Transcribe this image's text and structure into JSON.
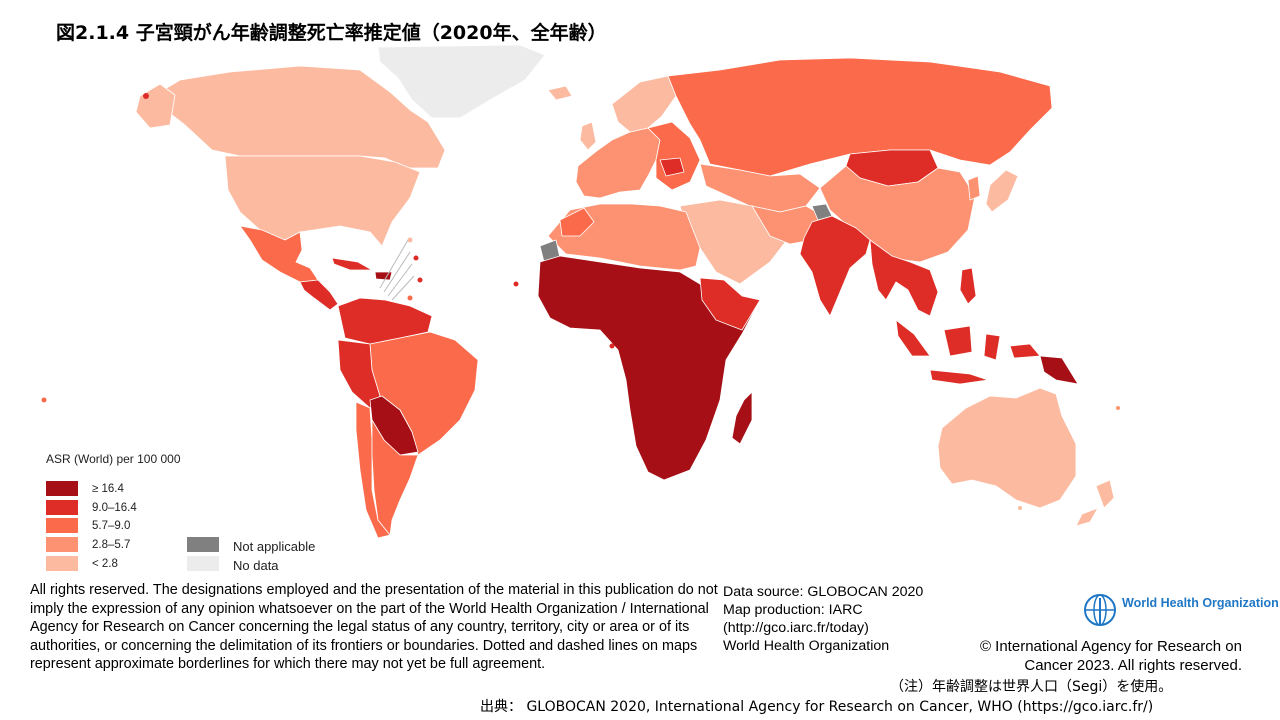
{
  "title": "図2.1.4 子宮頸がん年齢調整死亡率推定値（2020年、全年齢）",
  "legend": {
    "title": "ASR (World) per 100 000",
    "classes": [
      {
        "label": "≥ 16.4",
        "color": "#a50f15"
      },
      {
        "label": "9.0–16.4",
        "color": "#de2d26"
      },
      {
        "label": "5.7–9.0",
        "color": "#fb6a4a"
      },
      {
        "label": "2.8–5.7",
        "color": "#fc9272"
      },
      {
        "label": "< 2.8",
        "color": "#fcbba1"
      }
    ],
    "extra": [
      {
        "label": "Not applicable",
        "color": "#808080"
      },
      {
        "label": "No data",
        "color": "#ececec"
      }
    ]
  },
  "disclaimer": "All rights reserved. The designations employed and the presentation of the material in this publication do not imply the expression of any opinion whatsoever on the part of the World Health Organization / International  Agency for Research on Cancer concerning the legal status of any country, territory, city or area or of its authorities, or concerning the delimitation of its frontiers or boundaries. Dotted and dashed lines on maps represent approximate borderlines for which there may not yet be full agreement.",
  "source": {
    "line1": "Data source: GLOBOCAN 2020",
    "line2": "Map production: IARC",
    "line3": "(http://gco.iarc.fr/today)",
    "line4": "World Health  Organization"
  },
  "who_logo_text": "World Health Organization",
  "copyright": {
    "line1": "© International  Agency for Research on",
    "line2": "Cancer 2023. All rights reserved."
  },
  "note": "（注）年齢調整は世界人口（Segi）を使用。",
  "credit": "出典： GLOBOCAN 2020, International Agency for Research on Cancer, WHO (https://gco.iarc.fr/)",
  "regions": [
    {
      "name": "Greenland",
      "class": "No data"
    },
    {
      "name": "Canada",
      "class": "< 2.8"
    },
    {
      "name": "United States",
      "class": "< 2.8"
    },
    {
      "name": "Mexico",
      "class": "5.7–9.0"
    },
    {
      "name": "Central America",
      "class": "9.0–16.4"
    },
    {
      "name": "Venezuela / Guyana",
      "class": "9.0–16.4"
    },
    {
      "name": "Brazil",
      "class": "5.7–9.0"
    },
    {
      "name": "Peru",
      "class": "9.0–16.4"
    },
    {
      "name": "Bolivia / Paraguay",
      "class": "≥ 16.4"
    },
    {
      "name": "Argentina",
      "class": "5.7–9.0"
    },
    {
      "name": "Chile",
      "class": "5.7–9.0"
    },
    {
      "name": "Western Europe",
      "class": "2.8–5.7"
    },
    {
      "name": "Eastern Europe",
      "class": "5.7–9.0"
    },
    {
      "name": "Russia",
      "class": "5.7–9.0"
    },
    {
      "name": "Mongolia",
      "class": "9.0–16.4"
    },
    {
      "name": "China",
      "class": "2.8–5.7"
    },
    {
      "name": "India",
      "class": "9.0–16.4"
    },
    {
      "name": "Middle East",
      "class": "< 2.8"
    },
    {
      "name": "North Africa",
      "class": "2.8–5.7"
    },
    {
      "name": "Sub-Saharan Africa",
      "class": "≥ 16.4"
    },
    {
      "name": "Madagascar",
      "class": "≥ 16.4"
    },
    {
      "name": "Southeast Asia",
      "class": "9.0–16.4"
    },
    {
      "name": "Indonesia",
      "class": "9.0–16.4"
    },
    {
      "name": "Papua New Guinea",
      "class": "≥ 16.4"
    },
    {
      "name": "Australia",
      "class": "< 2.8"
    },
    {
      "name": "New Zealand",
      "class": "< 2.8"
    },
    {
      "name": "Kashmir",
      "class": "Not applicable"
    }
  ]
}
